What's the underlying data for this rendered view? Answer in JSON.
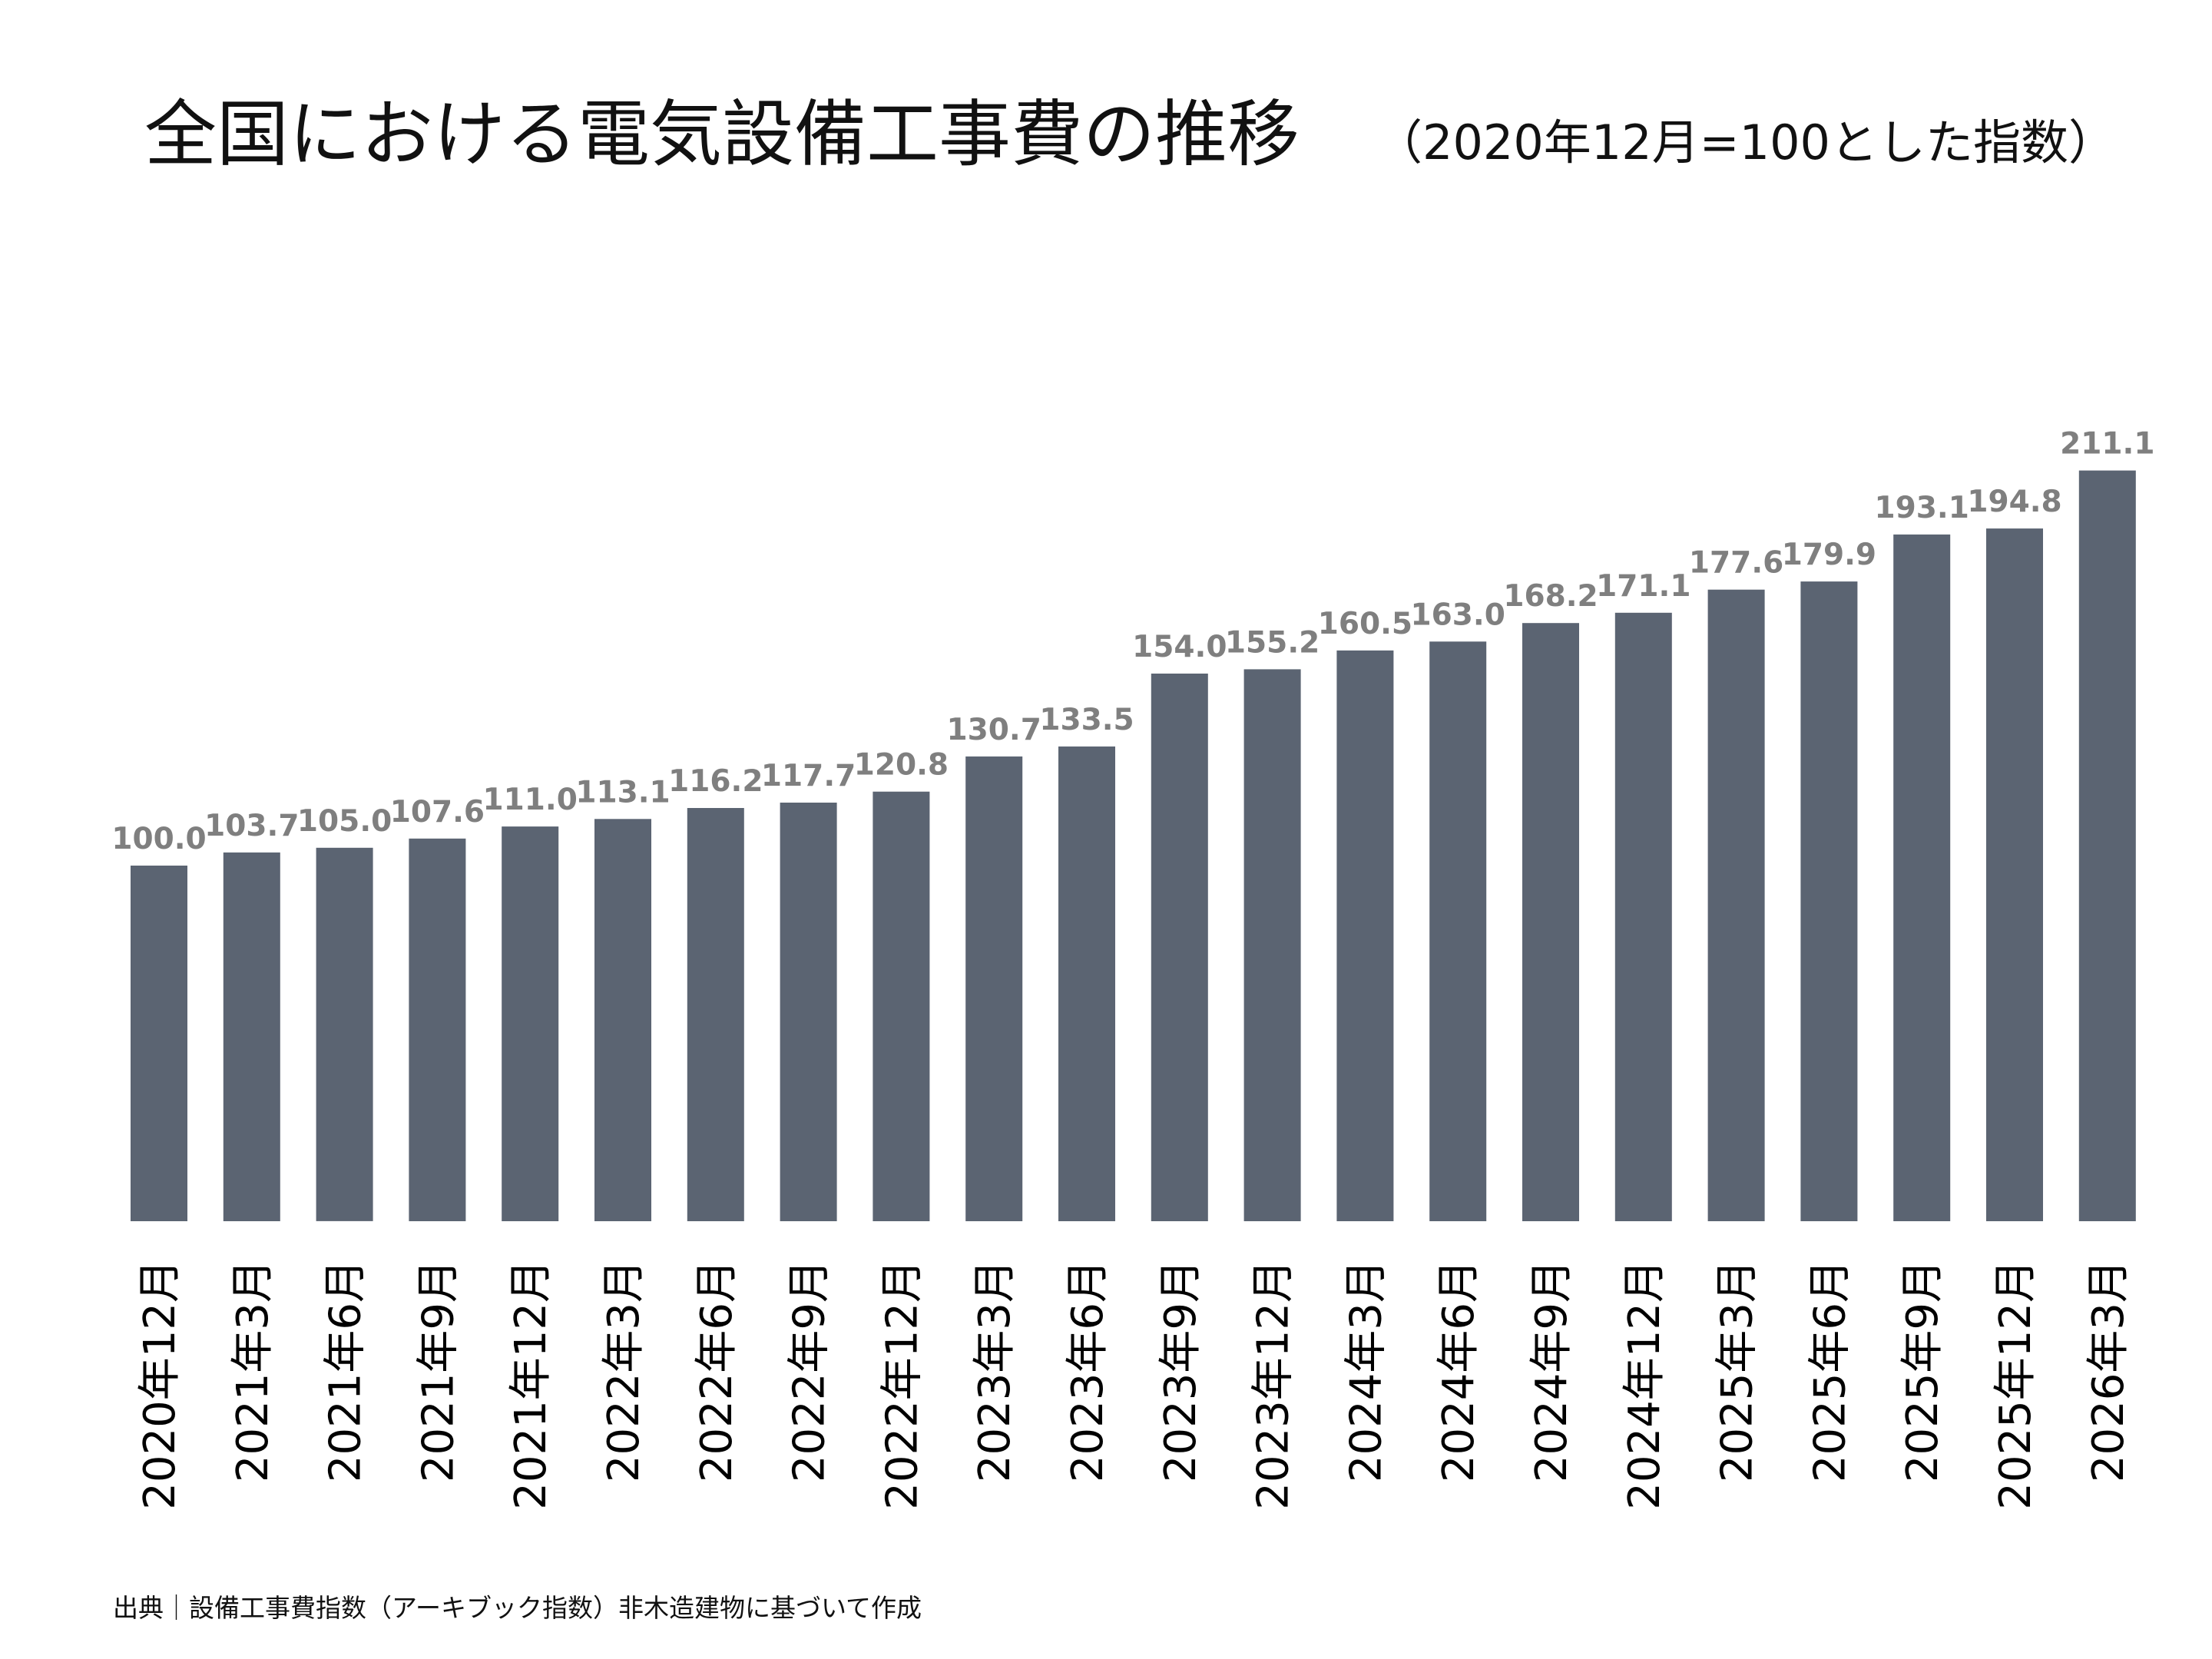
{
  "title": "全国における電気設備工事費の推移",
  "subtitle": "（2020年12月=100とした指数）",
  "source": "出典｜設備工事費指数（アーキブック指数）非木造建物に基づいて作成",
  "colors": {
    "bar": "#5b6472",
    "value_label": "#7f7f7f",
    "text": "#111111"
  },
  "chart_data": {
    "type": "bar",
    "title": "全国における電気設備工事費の推移",
    "subtitle": "（2020年12月=100とした指数）",
    "xlabel": "",
    "ylabel": "",
    "ylim": [
      0,
      220
    ],
    "grid": false,
    "legend": "none",
    "categories": [
      "2020年12月",
      "2021年3月",
      "2021年6月",
      "2021年9月",
      "2021年12月",
      "2022年3月",
      "2022年6月",
      "2022年9月",
      "2022年12月",
      "2023年3月",
      "2023年6月",
      "2023年9月",
      "2023年12月",
      "2024年3月",
      "2024年6月",
      "2024年9月",
      "2024年12月",
      "2025年3月",
      "2025年6月",
      "2025年9月",
      "2025年12月",
      "2026年3月"
    ],
    "values": [
      100.0,
      103.7,
      105.0,
      107.6,
      111.0,
      113.1,
      116.2,
      117.7,
      120.8,
      130.7,
      133.5,
      154.0,
      155.2,
      160.5,
      163.0,
      168.2,
      171.1,
      177.6,
      179.9,
      193.1,
      194.8,
      211.1
    ],
    "value_labels": [
      "100.0",
      "103.7",
      "105.0",
      "107.6",
      "111.0",
      "113.1",
      "116.2",
      "117.7",
      "120.8",
      "130.7",
      "133.5",
      "154.0",
      "155.2",
      "160.5",
      "163.0",
      "168.2",
      "171.1",
      "177.6",
      "179.9",
      "193.1",
      "194.8",
      "211.1"
    ]
  }
}
